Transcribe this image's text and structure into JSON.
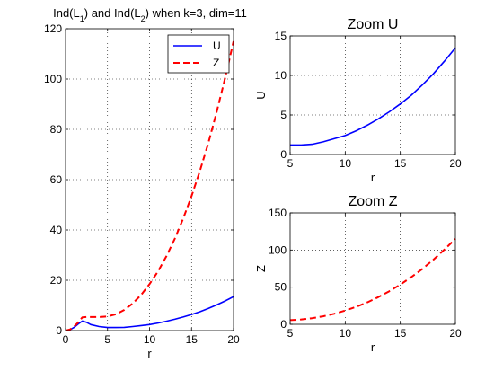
{
  "chart_data": [
    {
      "type": "line",
      "title": "Ind(L1) and Ind(L2) when k=3, dim=11",
      "title_parts": {
        "p1": "Ind(L",
        "s1": "1",
        "p2": ") and Ind(L",
        "s2": "2",
        "p3": ") when k=3, dim=11"
      },
      "xlabel": "r",
      "ylabel": "",
      "xlim": [
        0,
        20
      ],
      "ylim": [
        0,
        120
      ],
      "xticks": [
        0,
        5,
        10,
        15,
        20
      ],
      "yticks": [
        0,
        20,
        40,
        60,
        80,
        100,
        120
      ],
      "grid": true,
      "legend": "top-right",
      "x": [
        0,
        0.5,
        1,
        1.5,
        2,
        2.5,
        3,
        4,
        5,
        6,
        7,
        8,
        9,
        10,
        11,
        12,
        13,
        14,
        15,
        16,
        17,
        18,
        19,
        20
      ],
      "series": [
        {
          "name": "U",
          "color": "#0000ff",
          "style": "solid",
          "values": [
            0,
            0.3,
            1.2,
            2.6,
            3.8,
            3.3,
            2.4,
            1.6,
            1.2,
            1.2,
            1.3,
            1.6,
            2.0,
            2.4,
            3.0,
            3.7,
            4.5,
            5.4,
            6.4,
            7.5,
            8.8,
            10.2,
            11.8,
            13.5
          ]
        },
        {
          "name": "Z",
          "color": "#ff0000",
          "style": "dashed",
          "values": [
            0,
            0.4,
            1.5,
            3.2,
            5.3,
            5.4,
            5.4,
            5.4,
            5.6,
            6.5,
            8.2,
            10.8,
            14.2,
            18.5,
            23.5,
            29.5,
            36.5,
            44.5,
            53.5,
            63.5,
            74.5,
            87,
            100.5,
            115
          ]
        }
      ]
    },
    {
      "type": "line",
      "title": "Zoom U",
      "xlabel": "r",
      "ylabel": "U",
      "xlim": [
        5,
        20
      ],
      "ylim": [
        0,
        15
      ],
      "xticks": [
        5,
        10,
        15,
        20
      ],
      "yticks": [
        0,
        5,
        10,
        15
      ],
      "grid": true,
      "x": [
        5,
        6,
        7,
        8,
        9,
        10,
        11,
        12,
        13,
        14,
        15,
        16,
        17,
        18,
        19,
        20
      ],
      "series": [
        {
          "color": "#0000ff",
          "style": "solid",
          "values": [
            1.2,
            1.2,
            1.3,
            1.6,
            2.0,
            2.4,
            3.0,
            3.7,
            4.5,
            5.4,
            6.4,
            7.5,
            8.8,
            10.2,
            11.8,
            13.5
          ]
        }
      ]
    },
    {
      "type": "line",
      "title": "Zoom Z",
      "xlabel": "r",
      "ylabel": "Z",
      "xlim": [
        5,
        20
      ],
      "ylim": [
        0,
        150
      ],
      "xticks": [
        5,
        10,
        15,
        20
      ],
      "yticks": [
        0,
        50,
        100,
        150
      ],
      "grid": true,
      "x": [
        5,
        6,
        7,
        8,
        9,
        10,
        11,
        12,
        13,
        14,
        15,
        16,
        17,
        18,
        19,
        20
      ],
      "series": [
        {
          "color": "#ff0000",
          "style": "dashed",
          "values": [
            5.6,
            6.5,
            8.2,
            10.8,
            14.2,
            18.5,
            23.5,
            29.5,
            36.5,
            44.5,
            53.5,
            63.5,
            74.5,
            87,
            100.5,
            115
          ]
        }
      ]
    }
  ]
}
